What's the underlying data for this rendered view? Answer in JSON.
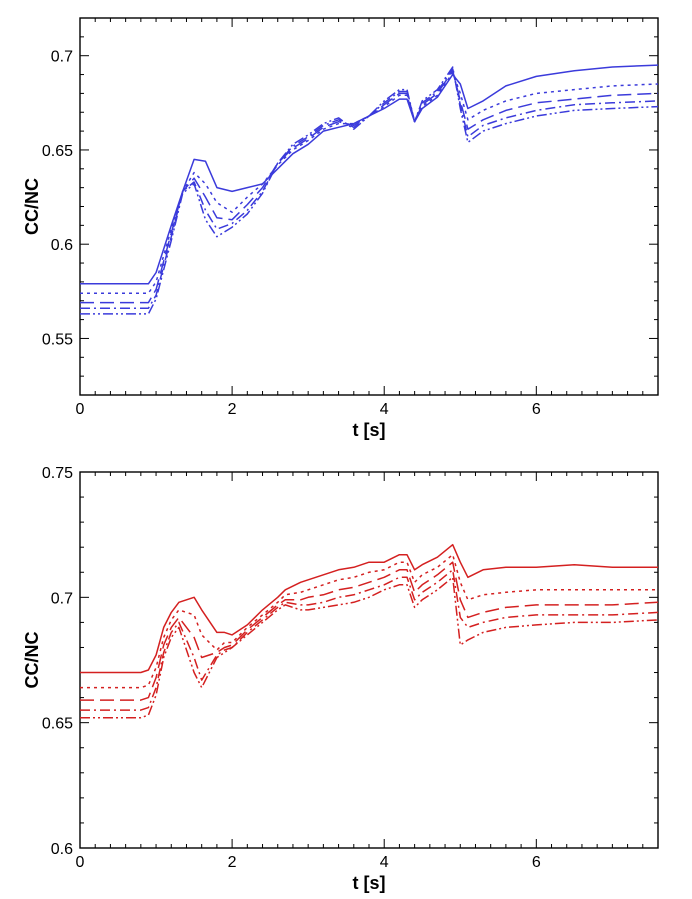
{
  "chart_data": [
    {
      "type": "line",
      "title": "",
      "xlabel": "t [s]",
      "ylabel": "CC/NC",
      "xlim": [
        0,
        7.6
      ],
      "ylim": [
        0.52,
        0.72
      ],
      "xticks": [
        0,
        2,
        4,
        6
      ],
      "yticks": [
        0.55,
        0.6,
        0.65,
        0.7
      ],
      "xtick_labels": [
        "0",
        "2",
        "4",
        "6"
      ],
      "ytick_labels": [
        "0.55",
        "0.6",
        "0.65",
        "0.7"
      ],
      "grid": false,
      "color": "#3b3bdb",
      "series": [
        {
          "style": "solid",
          "x": [
            0,
            0.9,
            1.0,
            1.2,
            1.35,
            1.5,
            1.65,
            1.8,
            2.0,
            2.2,
            2.4,
            2.6,
            2.8,
            3.0,
            3.2,
            3.4,
            3.6,
            3.8,
            4.0,
            4.2,
            4.3,
            4.4,
            4.5,
            4.7,
            4.9,
            5.0,
            5.1,
            5.3,
            5.6,
            6.0,
            6.5,
            7.0,
            7.6
          ],
          "y": [
            0.579,
            0.579,
            0.585,
            0.61,
            0.628,
            0.645,
            0.644,
            0.63,
            0.628,
            0.63,
            0.632,
            0.64,
            0.648,
            0.653,
            0.66,
            0.662,
            0.664,
            0.668,
            0.672,
            0.677,
            0.677,
            0.665,
            0.672,
            0.678,
            0.69,
            0.685,
            0.672,
            0.676,
            0.684,
            0.689,
            0.692,
            0.694,
            0.695
          ]
        },
        {
          "style": "dotted",
          "x": [
            0,
            0.9,
            1.0,
            1.2,
            1.35,
            1.5,
            1.65,
            1.8,
            2.0,
            2.2,
            2.4,
            2.6,
            2.8,
            3.0,
            3.2,
            3.4,
            3.6,
            3.8,
            4.0,
            4.2,
            4.3,
            4.4,
            4.5,
            4.7,
            4.9,
            5.0,
            5.1,
            5.3,
            5.6,
            6.0,
            6.5,
            7.0,
            7.6
          ],
          "y": [
            0.574,
            0.574,
            0.58,
            0.608,
            0.628,
            0.638,
            0.632,
            0.622,
            0.617,
            0.625,
            0.632,
            0.642,
            0.65,
            0.655,
            0.661,
            0.664,
            0.664,
            0.668,
            0.673,
            0.679,
            0.679,
            0.665,
            0.673,
            0.679,
            0.691,
            0.68,
            0.666,
            0.671,
            0.676,
            0.68,
            0.682,
            0.684,
            0.685
          ]
        },
        {
          "style": "dashed",
          "x": [
            0,
            0.9,
            1.0,
            1.2,
            1.35,
            1.5,
            1.65,
            1.8,
            2.0,
            2.2,
            2.4,
            2.6,
            2.8,
            3.0,
            3.2,
            3.4,
            3.6,
            3.8,
            4.0,
            4.2,
            4.3,
            4.4,
            4.5,
            4.7,
            4.9,
            5.0,
            5.1,
            5.3,
            5.6,
            6.0,
            6.5,
            7.0,
            7.6
          ],
          "y": [
            0.569,
            0.569,
            0.576,
            0.606,
            0.628,
            0.635,
            0.625,
            0.614,
            0.613,
            0.621,
            0.63,
            0.643,
            0.651,
            0.656,
            0.662,
            0.665,
            0.663,
            0.668,
            0.674,
            0.68,
            0.68,
            0.665,
            0.674,
            0.68,
            0.692,
            0.676,
            0.661,
            0.666,
            0.671,
            0.675,
            0.677,
            0.679,
            0.68
          ]
        },
        {
          "style": "dashdot",
          "x": [
            0,
            0.9,
            1.0,
            1.2,
            1.35,
            1.5,
            1.65,
            1.8,
            2.0,
            2.2,
            2.4,
            2.6,
            2.8,
            3.0,
            3.2,
            3.4,
            3.6,
            3.8,
            4.0,
            4.2,
            4.3,
            4.4,
            4.5,
            4.7,
            4.9,
            5.0,
            5.1,
            5.3,
            5.6,
            6.0,
            6.5,
            7.0,
            7.6
          ],
          "y": [
            0.566,
            0.566,
            0.573,
            0.604,
            0.628,
            0.633,
            0.618,
            0.608,
            0.611,
            0.618,
            0.628,
            0.643,
            0.652,
            0.657,
            0.663,
            0.666,
            0.662,
            0.668,
            0.675,
            0.681,
            0.681,
            0.665,
            0.675,
            0.681,
            0.693,
            0.674,
            0.657,
            0.663,
            0.667,
            0.671,
            0.674,
            0.675,
            0.676
          ]
        },
        {
          "style": "dashdotdot",
          "x": [
            0,
            0.9,
            1.0,
            1.2,
            1.35,
            1.5,
            1.65,
            1.8,
            2.0,
            2.2,
            2.4,
            2.6,
            2.8,
            3.0,
            3.2,
            3.4,
            3.6,
            3.8,
            4.0,
            4.2,
            4.3,
            4.4,
            4.5,
            4.7,
            4.9,
            5.0,
            5.1,
            5.3,
            5.6,
            6.0,
            6.5,
            7.0,
            7.6
          ],
          "y": [
            0.563,
            0.563,
            0.571,
            0.602,
            0.627,
            0.632,
            0.613,
            0.604,
            0.609,
            0.616,
            0.627,
            0.643,
            0.653,
            0.658,
            0.664,
            0.667,
            0.661,
            0.668,
            0.676,
            0.682,
            0.682,
            0.665,
            0.676,
            0.682,
            0.694,
            0.672,
            0.654,
            0.66,
            0.664,
            0.668,
            0.671,
            0.672,
            0.673
          ]
        }
      ]
    },
    {
      "type": "line",
      "title": "",
      "xlabel": "t [s]",
      "ylabel": "CC/NC",
      "xlim": [
        0,
        7.6
      ],
      "ylim": [
        0.6,
        0.75
      ],
      "xticks": [
        0,
        2,
        4,
        6
      ],
      "yticks": [
        0.6,
        0.65,
        0.7,
        0.75
      ],
      "xtick_labels": [
        "0",
        "2",
        "4",
        "6"
      ],
      "ytick_labels": [
        "0.6",
        "0.65",
        "0.7",
        "0.75"
      ],
      "grid": false,
      "color": "#d42020",
      "series": [
        {
          "style": "solid",
          "x": [
            0,
            0.8,
            0.9,
            1.0,
            1.1,
            1.2,
            1.3,
            1.5,
            1.6,
            1.8,
            1.9,
            2.0,
            2.2,
            2.4,
            2.6,
            2.7,
            2.9,
            3.0,
            3.2,
            3.4,
            3.6,
            3.8,
            4.0,
            4.2,
            4.3,
            4.4,
            4.5,
            4.7,
            4.9,
            5.0,
            5.1,
            5.3,
            5.6,
            6.0,
            6.5,
            7.0,
            7.6
          ],
          "y": [
            0.67,
            0.67,
            0.671,
            0.677,
            0.688,
            0.694,
            0.698,
            0.7,
            0.695,
            0.686,
            0.686,
            0.685,
            0.689,
            0.695,
            0.7,
            0.703,
            0.706,
            0.707,
            0.709,
            0.711,
            0.712,
            0.714,
            0.714,
            0.717,
            0.717,
            0.711,
            0.713,
            0.716,
            0.721,
            0.714,
            0.708,
            0.711,
            0.712,
            0.712,
            0.713,
            0.712,
            0.712
          ]
        },
        {
          "style": "dotted",
          "x": [
            0,
            0.8,
            0.9,
            1.0,
            1.1,
            1.2,
            1.3,
            1.5,
            1.6,
            1.8,
            1.9,
            2.0,
            2.2,
            2.4,
            2.6,
            2.7,
            2.9,
            3.0,
            3.2,
            3.4,
            3.6,
            3.8,
            4.0,
            4.2,
            4.3,
            4.4,
            4.5,
            4.7,
            4.9,
            5.0,
            5.1,
            5.3,
            5.6,
            6.0,
            6.5,
            7.0,
            7.6
          ],
          "y": [
            0.664,
            0.664,
            0.665,
            0.672,
            0.684,
            0.691,
            0.695,
            0.693,
            0.685,
            0.679,
            0.682,
            0.682,
            0.688,
            0.693,
            0.698,
            0.701,
            0.702,
            0.703,
            0.705,
            0.707,
            0.708,
            0.71,
            0.711,
            0.714,
            0.714,
            0.706,
            0.709,
            0.712,
            0.717,
            0.706,
            0.699,
            0.701,
            0.702,
            0.703,
            0.703,
            0.703,
            0.703
          ]
        },
        {
          "style": "dashed",
          "x": [
            0,
            0.8,
            0.9,
            1.0,
            1.1,
            1.2,
            1.3,
            1.5,
            1.6,
            1.8,
            1.9,
            2.0,
            2.2,
            2.4,
            2.6,
            2.7,
            2.9,
            3.0,
            3.2,
            3.4,
            3.6,
            3.8,
            4.0,
            4.2,
            4.3,
            4.4,
            4.5,
            4.7,
            4.9,
            5.0,
            5.1,
            5.3,
            5.6,
            6.0,
            6.5,
            7.0,
            7.6
          ],
          "y": [
            0.659,
            0.659,
            0.66,
            0.668,
            0.681,
            0.688,
            0.692,
            0.684,
            0.676,
            0.678,
            0.68,
            0.681,
            0.687,
            0.692,
            0.697,
            0.699,
            0.699,
            0.7,
            0.701,
            0.703,
            0.704,
            0.706,
            0.708,
            0.711,
            0.711,
            0.702,
            0.705,
            0.709,
            0.714,
            0.699,
            0.692,
            0.694,
            0.696,
            0.697,
            0.697,
            0.697,
            0.698
          ]
        },
        {
          "style": "dashdot",
          "x": [
            0,
            0.8,
            0.9,
            1.0,
            1.1,
            1.2,
            1.3,
            1.5,
            1.6,
            1.8,
            1.9,
            2.0,
            2.2,
            2.4,
            2.6,
            2.7,
            2.9,
            3.0,
            3.2,
            3.4,
            3.6,
            3.8,
            4.0,
            4.2,
            4.3,
            4.4,
            4.5,
            4.7,
            4.9,
            5.0,
            5.1,
            5.3,
            5.6,
            6.0,
            6.5,
            7.0,
            7.6
          ],
          "y": [
            0.655,
            0.655,
            0.656,
            0.664,
            0.678,
            0.686,
            0.69,
            0.676,
            0.667,
            0.677,
            0.679,
            0.68,
            0.686,
            0.691,
            0.696,
            0.698,
            0.697,
            0.697,
            0.698,
            0.7,
            0.701,
            0.703,
            0.705,
            0.708,
            0.708,
            0.699,
            0.702,
            0.706,
            0.711,
            0.692,
            0.688,
            0.69,
            0.692,
            0.693,
            0.693,
            0.693,
            0.694
          ]
        },
        {
          "style": "dashdotdot",
          "x": [
            0,
            0.8,
            0.9,
            1.0,
            1.1,
            1.2,
            1.3,
            1.5,
            1.6,
            1.8,
            1.9,
            2.0,
            2.2,
            2.4,
            2.6,
            2.7,
            2.9,
            3.0,
            3.2,
            3.4,
            3.6,
            3.8,
            4.0,
            4.2,
            4.3,
            4.4,
            4.5,
            4.7,
            4.9,
            5.0,
            5.1,
            5.3,
            5.6,
            6.0,
            6.5,
            7.0,
            7.6
          ],
          "y": [
            0.652,
            0.652,
            0.653,
            0.661,
            0.676,
            0.684,
            0.688,
            0.67,
            0.664,
            0.676,
            0.678,
            0.68,
            0.685,
            0.69,
            0.695,
            0.697,
            0.695,
            0.695,
            0.696,
            0.697,
            0.698,
            0.7,
            0.703,
            0.705,
            0.705,
            0.696,
            0.699,
            0.703,
            0.708,
            0.681,
            0.683,
            0.686,
            0.688,
            0.689,
            0.69,
            0.69,
            0.691
          ]
        }
      ]
    }
  ]
}
